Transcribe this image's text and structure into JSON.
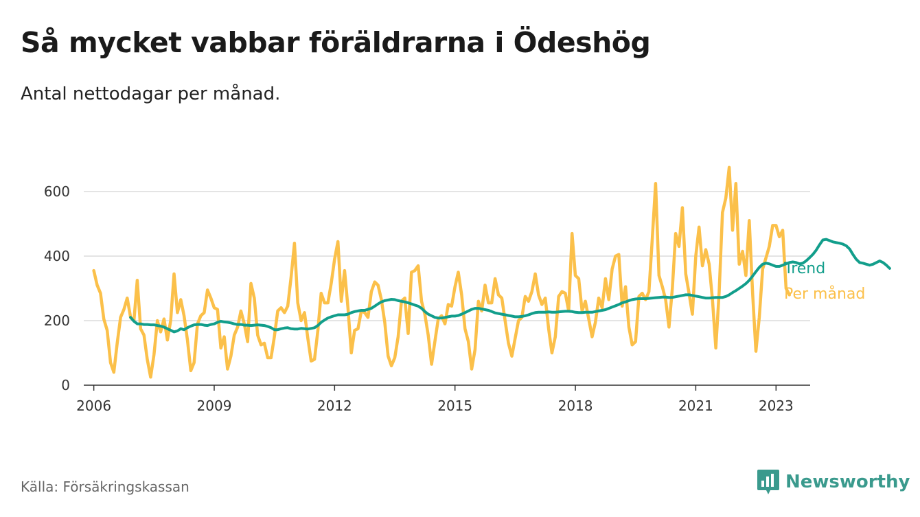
{
  "header": {
    "title": "Så mycket vabbar föräldrarna i Ödeshög",
    "subtitle": "Antal nettodagar per månad."
  },
  "footer": {
    "source": "Källa: Försäkringskassan",
    "brand": "Newsworthy",
    "brand_icon": "bar-chart-logo-icon"
  },
  "chart_data": {
    "type": "line",
    "title": "Så mycket vabbar föräldrarna i Ödeshög",
    "subtitle": "Antal nettodagar per månad.",
    "xlabel": "",
    "ylabel": "",
    "ylim": [
      0,
      600
    ],
    "xlim": [
      2005.75,
      2023.85
    ],
    "y_ticks": [
      0,
      200,
      400,
      600
    ],
    "x_ticks": [
      2006,
      2009,
      2012,
      2015,
      2018,
      2021,
      2023
    ],
    "grid": true,
    "legend_placement": "right, at line ends",
    "series": [
      {
        "name": "Per månad",
        "color": "#fbc04a",
        "start": 2006.0,
        "step": 0.08333,
        "values": [
          355,
          310,
          285,
          205,
          170,
          70,
          40,
          130,
          210,
          235,
          270,
          210,
          200,
          325,
          175,
          155,
          80,
          25,
          95,
          200,
          165,
          205,
          140,
          200,
          345,
          225,
          265,
          215,
          140,
          45,
          70,
          190,
          215,
          225,
          295,
          270,
          240,
          235,
          115,
          150,
          50,
          90,
          155,
          180,
          230,
          190,
          135,
          315,
          270,
          155,
          125,
          130,
          85,
          85,
          150,
          230,
          240,
          225,
          245,
          335,
          440,
          255,
          200,
          225,
          145,
          75,
          80,
          170,
          285,
          255,
          255,
          315,
          390,
          445,
          260,
          355,
          240,
          100,
          170,
          175,
          230,
          225,
          210,
          290,
          320,
          310,
          265,
          195,
          90,
          60,
          85,
          150,
          260,
          270,
          160,
          350,
          355,
          370,
          260,
          220,
          155,
          65,
          135,
          205,
          215,
          190,
          250,
          245,
          305,
          350,
          280,
          175,
          135,
          50,
          110,
          260,
          230,
          310,
          255,
          255,
          330,
          280,
          270,
          200,
          130,
          90,
          145,
          200,
          210,
          275,
          260,
          290,
          345,
          280,
          250,
          270,
          175,
          100,
          150,
          275,
          290,
          285,
          230,
          470,
          340,
          330,
          230,
          260,
          205,
          150,
          195,
          270,
          240,
          330,
          265,
          360,
          400,
          405,
          245,
          305,
          180,
          125,
          135,
          275,
          285,
          265,
          290,
          455,
          625,
          340,
          305,
          265,
          180,
          300,
          470,
          430,
          550,
          345,
          285,
          220,
          400,
          490,
          370,
          420,
          375,
          265,
          115,
          290,
          535,
          580,
          675,
          480,
          625,
          375,
          415,
          340,
          510,
          285,
          105,
          210,
          360,
          395,
          430,
          495,
          495,
          460,
          480,
          300,
          280
        ]
      },
      {
        "name": "Trend",
        "color": "#129e8b",
        "start": 2006.917,
        "step": 0.08333,
        "values": [
          210,
          198,
          190,
          190,
          188,
          188,
          187,
          187,
          185,
          183,
          180,
          175,
          170,
          165,
          168,
          175,
          172,
          178,
          183,
          187,
          188,
          188,
          186,
          185,
          188,
          190,
          195,
          198,
          196,
          195,
          193,
          190,
          188,
          188,
          186,
          186,
          185,
          186,
          187,
          186,
          185,
          182,
          178,
          172,
          172,
          175,
          177,
          178,
          175,
          174,
          174,
          176,
          175,
          174,
          176,
          178,
          185,
          195,
          202,
          208,
          212,
          215,
          218,
          218,
          218,
          220,
          225,
          228,
          230,
          232,
          232,
          235,
          238,
          245,
          252,
          258,
          262,
          264,
          266,
          265,
          262,
          260,
          258,
          255,
          252,
          248,
          245,
          238,
          228,
          220,
          215,
          210,
          208,
          208,
          210,
          212,
          214,
          214,
          216,
          220,
          225,
          230,
          235,
          238,
          238,
          236,
          234,
          232,
          228,
          224,
          222,
          220,
          218,
          216,
          214,
          212,
          212,
          213,
          215,
          218,
          222,
          225,
          226,
          226,
          226,
          227,
          226,
          226,
          227,
          228,
          229,
          229,
          228,
          226,
          225,
          225,
          226,
          226,
          226,
          228,
          230,
          232,
          234,
          238,
          242,
          246,
          250,
          255,
          258,
          262,
          265,
          267,
          268,
          268,
          268,
          269,
          270,
          271,
          272,
          273,
          273,
          272,
          272,
          274,
          276,
          278,
          280,
          280,
          278,
          276,
          274,
          272,
          270,
          270,
          271,
          272,
          272,
          272,
          275,
          280,
          287,
          293,
          300,
          307,
          315,
          325,
          338,
          352,
          365,
          375,
          378,
          376,
          372,
          368,
          368,
          372,
          376,
          380,
          382,
          380,
          376,
          378,
          385,
          395,
          405,
          418,
          435,
          450,
          452,
          448,
          444,
          442,
          440,
          437,
          432,
          422,
          405,
          390,
          380,
          378,
          375,
          372,
          375,
          380,
          385,
          380,
          372,
          362
        ]
      }
    ]
  }
}
